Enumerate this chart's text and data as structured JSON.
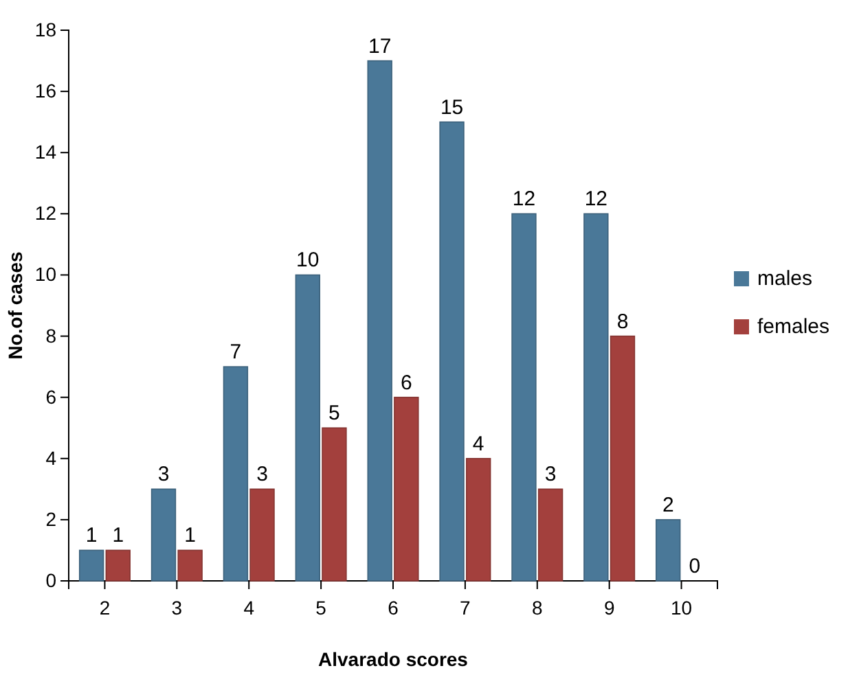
{
  "chart_data": {
    "type": "bar",
    "xlabel": "Alvarado scores",
    "ylabel": "No.of cases",
    "categories": [
      "2",
      "3",
      "4",
      "5",
      "6",
      "7",
      "8",
      "9",
      "10"
    ],
    "series": [
      {
        "name": "males",
        "color": "#4a7898",
        "values": [
          1,
          3,
          7,
          10,
          17,
          15,
          12,
          12,
          2
        ]
      },
      {
        "name": "females",
        "color": "#a3403d",
        "values": [
          1,
          1,
          3,
          5,
          6,
          4,
          3,
          8,
          0
        ]
      }
    ],
    "ylim": [
      0,
      18
    ],
    "yticks": [
      0,
      2,
      4,
      6,
      8,
      10,
      12,
      14,
      16,
      18
    ],
    "grid": false,
    "legend": "right",
    "data_labels": true
  }
}
